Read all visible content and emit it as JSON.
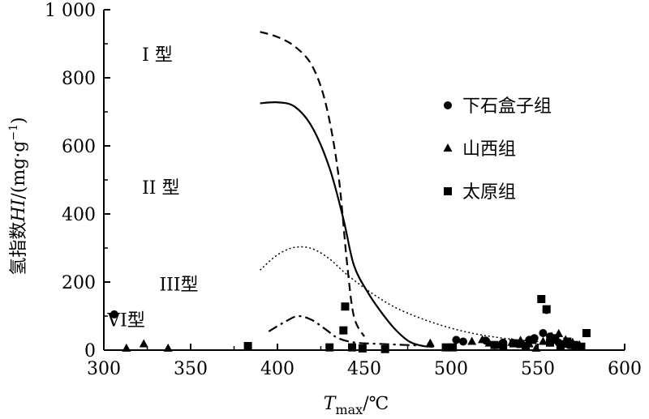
{
  "chart_data": {
    "type": "scatter",
    "title": "",
    "xlabel_main": "T",
    "xlabel_sub": "max",
    "xlabel_unit": "/℃",
    "ylabel_cn": "氢指数",
    "ylabel_var": "HI",
    "ylabel_unit": "/(mg·g",
    "ylabel_exp": "−1",
    "ylabel_close": ")",
    "xlim": [
      300,
      600
    ],
    "ylim": [
      0,
      1000
    ],
    "xticks": [
      300,
      350,
      400,
      450,
      500,
      550,
      600
    ],
    "yticks": [
      0,
      200,
      400,
      600,
      800,
      1000
    ],
    "ytick_labels": [
      "0",
      "200",
      "400",
      "600",
      "800",
      "1 000"
    ],
    "legend_position": "upper-right",
    "series": [
      {
        "name": "下石盒子组",
        "marker": "circle",
        "points": [
          [
            306,
            105
          ],
          [
            503,
            30
          ],
          [
            507,
            25
          ],
          [
            520,
            28
          ],
          [
            530,
            22
          ],
          [
            545,
            30
          ],
          [
            548,
            35
          ],
          [
            553,
            50
          ],
          [
            555,
            118
          ],
          [
            557,
            40
          ],
          [
            560,
            30
          ],
          [
            562,
            22
          ],
          [
            565,
            18
          ],
          [
            568,
            15
          ],
          [
            571,
            12
          ]
        ]
      },
      {
        "name": "山西组",
        "marker": "triangle",
        "points": [
          [
            313,
            5
          ],
          [
            323,
            18
          ],
          [
            337,
            5
          ],
          [
            488,
            20
          ],
          [
            512,
            25
          ],
          [
            518,
            30
          ],
          [
            522,
            20
          ],
          [
            528,
            15
          ],
          [
            535,
            22
          ],
          [
            540,
            28
          ],
          [
            545,
            18
          ],
          [
            549,
            5
          ],
          [
            553,
            25
          ],
          [
            558,
            40
          ],
          [
            562,
            48
          ],
          [
            566,
            30
          ],
          [
            570,
            22
          ],
          [
            574,
            15
          ]
        ]
      },
      {
        "name": "太原组",
        "marker": "square",
        "points": [
          [
            383,
            12
          ],
          [
            430,
            8
          ],
          [
            438,
            58
          ],
          [
            439,
            128
          ],
          [
            443,
            8
          ],
          [
            449,
            5
          ],
          [
            462,
            3
          ],
          [
            497,
            8
          ],
          [
            501,
            8
          ],
          [
            525,
            15
          ],
          [
            530,
            10
          ],
          [
            536,
            20
          ],
          [
            540,
            18
          ],
          [
            543,
            12
          ],
          [
            547,
            30
          ],
          [
            552,
            150
          ],
          [
            555,
            120
          ],
          [
            557,
            22
          ],
          [
            560,
            35
          ],
          [
            563,
            10
          ],
          [
            567,
            25
          ],
          [
            571,
            15
          ],
          [
            575,
            10
          ],
          [
            578,
            50
          ]
        ]
      }
    ],
    "curves": [
      {
        "name": "I型",
        "style": "dashed",
        "points": [
          [
            390,
            935
          ],
          [
            400,
            920
          ],
          [
            410,
            892
          ],
          [
            420,
            835
          ],
          [
            428,
            720
          ],
          [
            435,
            520
          ],
          [
            440,
            260
          ],
          [
            444,
            100
          ],
          [
            450,
            40
          ]
        ]
      },
      {
        "name": "II型",
        "style": "solid",
        "points": [
          [
            390,
            725
          ],
          [
            400,
            728
          ],
          [
            410,
            715
          ],
          [
            420,
            655
          ],
          [
            430,
            535
          ],
          [
            438,
            385
          ],
          [
            444,
            250
          ],
          [
            452,
            170
          ],
          [
            460,
            110
          ],
          [
            468,
            60
          ],
          [
            476,
            25
          ],
          [
            484,
            12
          ],
          [
            490,
            10
          ]
        ]
      },
      {
        "name": "III型",
        "style": "dotted",
        "points": [
          [
            390,
            235
          ],
          [
            400,
            280
          ],
          [
            410,
            302
          ],
          [
            420,
            298
          ],
          [
            430,
            268
          ],
          [
            440,
            222
          ],
          [
            455,
            165
          ],
          [
            470,
            120
          ],
          [
            490,
            80
          ],
          [
            510,
            52
          ],
          [
            530,
            35
          ],
          [
            550,
            25
          ],
          [
            560,
            22
          ]
        ]
      },
      {
        "name": "VI型",
        "style": "dashdot",
        "points": [
          [
            395,
            55
          ],
          [
            405,
            85
          ],
          [
            412,
            100
          ],
          [
            420,
            88
          ],
          [
            428,
            60
          ],
          [
            435,
            35
          ],
          [
            445,
            22
          ],
          [
            460,
            18
          ],
          [
            480,
            14
          ]
        ]
      }
    ],
    "curve_labels": [
      {
        "text": "I 型",
        "x": 322,
        "y": 850
      },
      {
        "text": "II 型",
        "x": 322,
        "y": 460
      },
      {
        "text": "III型",
        "x": 332,
        "y": 175
      },
      {
        "text": "VI型",
        "x": 302,
        "y": 70
      }
    ]
  }
}
